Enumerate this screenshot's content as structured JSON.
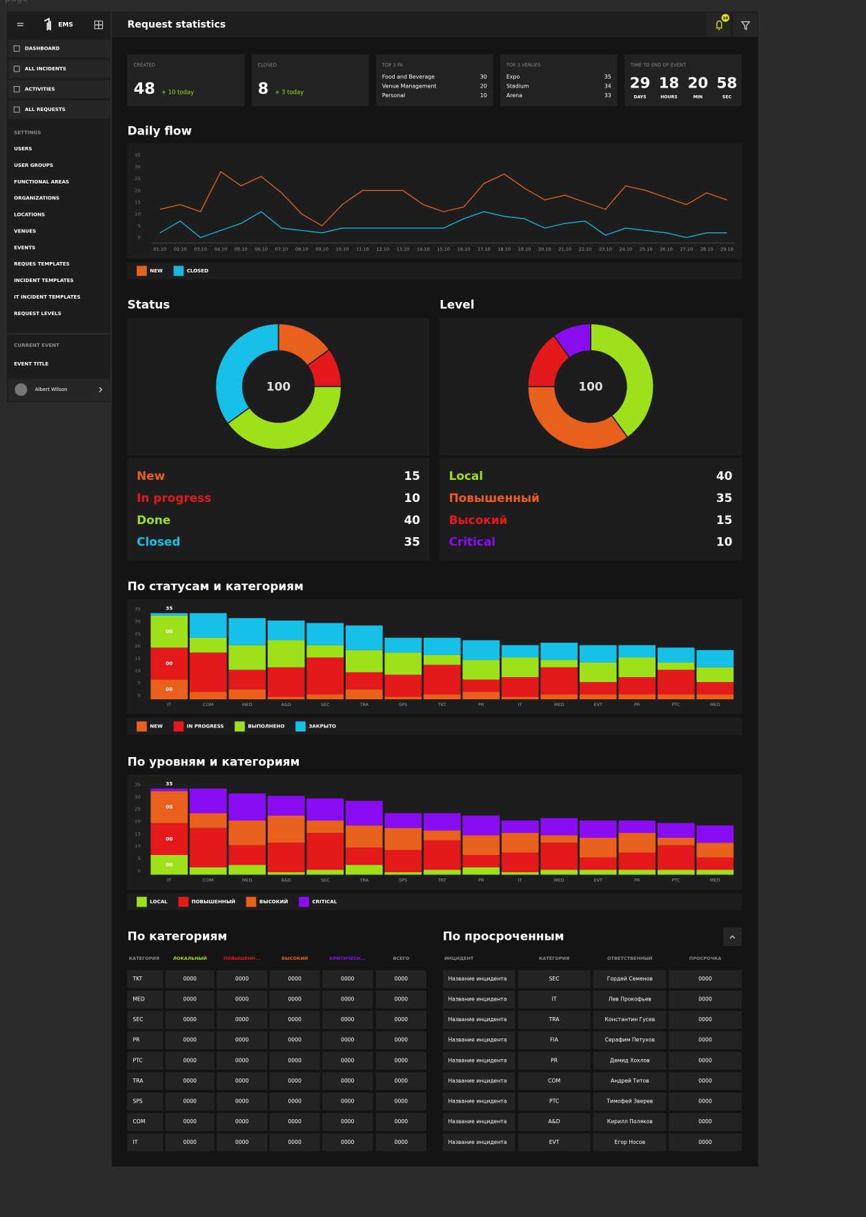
{
  "page_label": "page",
  "sidebar": {
    "brand": "EMS",
    "nav": [
      "DASHBOARD",
      "ALL INCIDENTS",
      "ACTIVITIES",
      "ALL REQUESTS"
    ],
    "settings_title": "SETTINGS",
    "settings": [
      "USERS",
      "USER GROUPS",
      "FUNCTIONAL AREAS",
      "ORGANIZATIONS",
      "LOCATIONS",
      "VENUES",
      "EVENTS",
      "REQUES TEMPLATES",
      "INCIDENT TEMPLATES",
      "IT INCIDENT TEMPLATES",
      "REQUEST LEVELS"
    ],
    "current_event_title": "CURRENT EVENT",
    "event_title": "EVENT TITLE",
    "user": "Albert Wilson"
  },
  "header": {
    "title": "Request statistics",
    "notifications": 10
  },
  "cards": {
    "created": {
      "label": "CREATED",
      "value": 48,
      "delta": "+ 10 today"
    },
    "closed": {
      "label": "CLOSED",
      "value": 8,
      "delta": "+ 3 today"
    },
    "top_fa": {
      "label": "TOP 3 FA",
      "items": [
        {
          "name": "Food and Beverage",
          "value": 30
        },
        {
          "name": "Venue Management",
          "value": 20
        },
        {
          "name": "Personal",
          "value": 10
        }
      ]
    },
    "top_venues": {
      "label": "TOP 3 VENUES",
      "items": [
        {
          "name": "Expo",
          "value": 35
        },
        {
          "name": "Stadium",
          "value": 34
        },
        {
          "name": "Arena",
          "value": 33
        }
      ]
    },
    "countdown": {
      "label": "TIME TO END OF EVENT",
      "units": [
        {
          "value": 29,
          "label": "DAYS"
        },
        {
          "value": 18,
          "label": "HOURS"
        },
        {
          "value": 20,
          "label": "MIN"
        },
        {
          "value": 58,
          "label": "SEC"
        }
      ]
    }
  },
  "chart_data": [
    {
      "type": "line",
      "title": "Daily flow",
      "categories": [
        "01.10",
        "02.10",
        "03.10",
        "04.10",
        "05.10",
        "06.10",
        "07.10",
        "08.10",
        "09.10",
        "10.10",
        "11.10",
        "12.10",
        "13.10",
        "14.10",
        "15.10",
        "16.10",
        "17.10",
        "18.10",
        "19.10",
        "20.10",
        "21.10",
        "22.10",
        "23.10",
        "24.10",
        "25.10",
        "26.10",
        "27.10",
        "28.10",
        "29.10"
      ],
      "series": [
        {
          "name": "NEW",
          "color": "#e2621f",
          "values": [
            12,
            14,
            11,
            28,
            22,
            26,
            19,
            10,
            5,
            14,
            20,
            20,
            20,
            14,
            11,
            13,
            23,
            27,
            21,
            16,
            18,
            15,
            12,
            22,
            20,
            17,
            14,
            19,
            16
          ]
        },
        {
          "name": "CLOSED",
          "color": "#19b7dc",
          "values": [
            2,
            7,
            0,
            3,
            6,
            11,
            4,
            3,
            2,
            4,
            4,
            4,
            4,
            4,
            4,
            8,
            11,
            9,
            8,
            4,
            6,
            7,
            1,
            4,
            3,
            2,
            0,
            2,
            2
          ]
        }
      ],
      "ylim": [
        0,
        35
      ],
      "yticks": [
        0,
        5,
        10,
        15,
        20,
        25,
        30,
        35
      ]
    },
    {
      "type": "pie",
      "title": "Status",
      "total": 100,
      "categories": [
        "New",
        "In progress",
        "Done",
        "Closed"
      ],
      "values": [
        15,
        10,
        40,
        35
      ],
      "colors": [
        "#e8601c",
        "#e3191c",
        "#9ee01a",
        "#17c0e6"
      ]
    },
    {
      "type": "pie",
      "title": "Level",
      "total": 100,
      "categories": [
        "Local",
        "Повышенный",
        "Высокий",
        "Critical"
      ],
      "values": [
        40,
        35,
        15,
        10
      ],
      "colors": [
        "#9ee01a",
        "#e8601c",
        "#e3191c",
        "#8a0cf2"
      ]
    },
    {
      "type": "bar",
      "stacked": true,
      "title": "По статусам и категориям",
      "categories": [
        "IT",
        "COM",
        "MED",
        "A&D",
        "SEC",
        "TRA",
        "SPS",
        "TKT",
        "PR",
        "IT",
        "MED",
        "EVT",
        "PR",
        "PTC",
        "MED"
      ],
      "series": [
        {
          "name": "NEW",
          "color": "#e8601c",
          "values": [
            8,
            3,
            4,
            1,
            2,
            4,
            1,
            2,
            3,
            1,
            2,
            2,
            2,
            2,
            2
          ]
        },
        {
          "name": "IN PROGRESS",
          "color": "#e3191c",
          "values": [
            13,
            16,
            8,
            12,
            15,
            7,
            9,
            12,
            5,
            8,
            11,
            5,
            7,
            10,
            5
          ]
        },
        {
          "name": "ВЫПОЛНЕНО",
          "color": "#9ee01a",
          "values": [
            13,
            6,
            10,
            11,
            5,
            9,
            9,
            4,
            8,
            8,
            3,
            8,
            8,
            3,
            6
          ]
        },
        {
          "name": "ЗАКРЫТО",
          "color": "#17c0e6",
          "values": [
            1,
            10,
            11,
            8,
            9,
            10,
            6,
            7,
            8,
            5,
            7,
            7,
            5,
            6,
            7
          ]
        }
      ],
      "segment_labels": [
        "00",
        "00",
        "00"
      ],
      "total_label": 35,
      "ylim": [
        0,
        35
      ],
      "yticks": [
        0,
        5,
        10,
        15,
        20,
        25,
        30,
        35
      ]
    },
    {
      "type": "bar",
      "stacked": true,
      "title": "По уровням и категориям",
      "categories": [
        "IT",
        "COM",
        "MED",
        "A&D",
        "SEC",
        "TRA",
        "SPS",
        "TKT",
        "PR",
        "IT",
        "MED",
        "EVT",
        "PR",
        "PTC",
        "MED"
      ],
      "series": [
        {
          "name": "LOCAL",
          "color": "#9ee01a",
          "values": [
            8,
            3,
            4,
            1,
            2,
            4,
            1,
            2,
            3,
            1,
            2,
            2,
            2,
            2,
            2
          ]
        },
        {
          "name": "ПОВЫШЕННЫЙ",
          "color": "#e3191c",
          "values": [
            13,
            16,
            8,
            12,
            15,
            7,
            9,
            12,
            5,
            8,
            11,
            5,
            7,
            10,
            5
          ]
        },
        {
          "name": "ВЫСОКИЙ",
          "color": "#e8601c",
          "values": [
            13,
            6,
            10,
            11,
            5,
            9,
            9,
            4,
            8,
            8,
            3,
            8,
            8,
            3,
            6
          ]
        },
        {
          "name": "CRITICAL",
          "color": "#8a0cf2",
          "values": [
            1,
            10,
            11,
            8,
            9,
            10,
            6,
            7,
            8,
            5,
            7,
            7,
            5,
            6,
            7
          ]
        }
      ],
      "segment_labels": [
        "00",
        "00",
        "00"
      ],
      "total_label": 35,
      "ylim": [
        0,
        35
      ],
      "yticks": [
        0,
        5,
        10,
        15,
        20,
        25,
        30,
        35
      ]
    }
  ],
  "tables": {
    "by_category": {
      "title": "По категориям",
      "headers": [
        "КАТЕГОРИЯ",
        "ЛОКАЛЬНЫЙ",
        "ПОВЫШЕНН...",
        "ВЫСОКИЙ",
        "КРИТИЧЕСК...",
        "ВСЕГО"
      ],
      "header_colors": [
        "#8a8a8a",
        "#9ee01a",
        "#e3191c",
        "#e8601c",
        "#8a0cf2",
        "#8a8a8a"
      ],
      "rows": [
        [
          "TKT",
          "0000",
          "0000",
          "0000",
          "0000",
          "0000"
        ],
        [
          "MED",
          "0000",
          "0000",
          "0000",
          "0000",
          "0000"
        ],
        [
          "SEC",
          "0000",
          "0000",
          "0000",
          "0000",
          "0000"
        ],
        [
          "PR",
          "0000",
          "0000",
          "0000",
          "0000",
          "0000"
        ],
        [
          "PTC",
          "0000",
          "0000",
          "0000",
          "0000",
          "0000"
        ],
        [
          "TRA",
          "0000",
          "0000",
          "0000",
          "0000",
          "0000"
        ],
        [
          "SPS",
          "0000",
          "0000",
          "0000",
          "0000",
          "0000"
        ],
        [
          "COM",
          "0000",
          "0000",
          "0000",
          "0000",
          "0000"
        ],
        [
          "IT",
          "0000",
          "0000",
          "0000",
          "0000",
          "0000"
        ]
      ]
    },
    "overdue": {
      "title": "По просроченным",
      "headers": [
        "ИНЦИДЕНТ",
        "КАТЕГОРИЯ",
        "ОТВЕТСТВЕННЫЙ",
        "ПРОСРОЧКА"
      ],
      "rows": [
        [
          "Название инцидента",
          "SEC",
          "Гордей Семенов",
          "0000"
        ],
        [
          "Название инцидента",
          "IT",
          "Лев Прокофьев",
          "0000"
        ],
        [
          "Название инцидента",
          "TRA",
          "Константин Гусев",
          "0000"
        ],
        [
          "Название инцидента",
          "FIA",
          "Серафим Петухов",
          "0000"
        ],
        [
          "Название инцидента",
          "PR",
          "Демид Хохлов",
          "0000"
        ],
        [
          "Название инцидента",
          "COM",
          "Андрей Титов",
          "0000"
        ],
        [
          "Название инцидента",
          "PTC",
          "Тимофей Зверев",
          "0000"
        ],
        [
          "Название инцидента",
          "A&D",
          "Кирилл Поляков",
          "0000"
        ],
        [
          "Название инцидента",
          "EVT",
          "Егор Носов",
          "0000"
        ]
      ]
    }
  }
}
